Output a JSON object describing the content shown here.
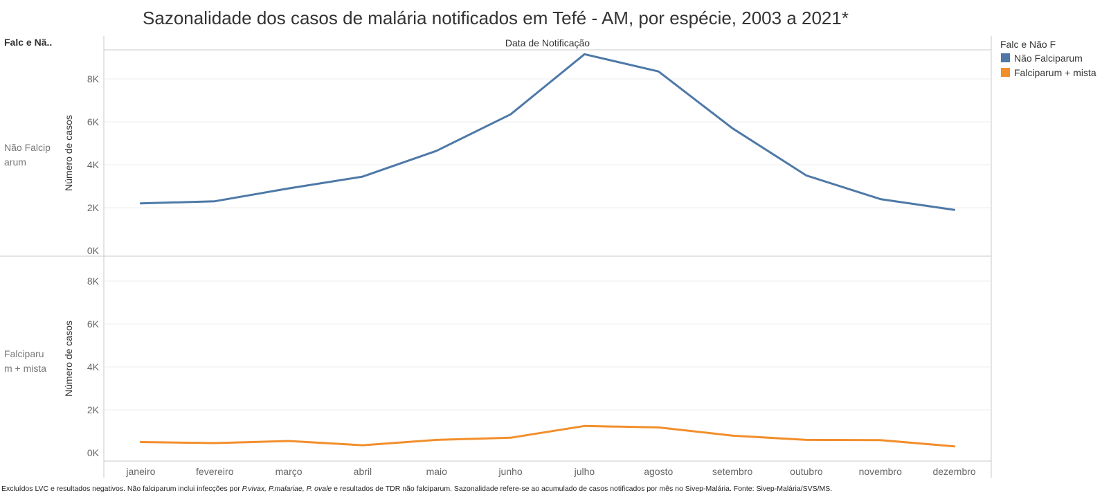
{
  "chart_data": {
    "type": "line",
    "title": "Sazonalidade dos casos de malária notificados em Tefé - AM, por espécie, 2003 a 2021*",
    "column_header": "Data de Notificação",
    "row_header": "Falc e Nã..",
    "ylabel": "Número de casos",
    "categories": [
      "janeiro",
      "fevereiro",
      "março",
      "abril",
      "maio",
      "junho",
      "julho",
      "agosto",
      "setembro",
      "outubro",
      "novembro",
      "dezembro"
    ],
    "y_ticks": [
      "0K",
      "2K",
      "4K",
      "6K",
      "8K"
    ],
    "ylim": [
      0,
      9500
    ],
    "grid": true,
    "legend_position": "right",
    "legend": {
      "title": "Falc e Não F",
      "entries": [
        {
          "label": "Não Falciparum",
          "color": "#4e79a7"
        },
        {
          "label": "Falciparum + mista",
          "color": "#f28e2b"
        }
      ]
    },
    "panels": [
      {
        "row_label_line1": "Não Falcip",
        "row_label_line2": "arum",
        "series_name": "Não Falciparum",
        "color": "#4e79a7",
        "values": [
          2200,
          2300,
          2900,
          3450,
          4650,
          6350,
          9150,
          8350,
          5700,
          3500,
          2400,
          1900
        ]
      },
      {
        "row_label_line1": "Falciparu",
        "row_label_line2": "m + mista",
        "series_name": "Falciparum + mista",
        "color": "#f28e2b",
        "values": [
          500,
          450,
          550,
          350,
          600,
          700,
          1250,
          1180,
          800,
          600,
          590,
          300
        ]
      }
    ]
  },
  "footnote": {
    "part1": "Excluídos LVC e resultados negativos. Não falciparum inclui infecções por ",
    "species": "P.vivax, P.malariae, P. ovale",
    "part2": " e resultados de TDR não falciparum. Sazonalidade refere-se ao acumulado de casos notificados por mês no Sivep-Malária. Fonte: Sivep-Malária/SVS/MS."
  }
}
